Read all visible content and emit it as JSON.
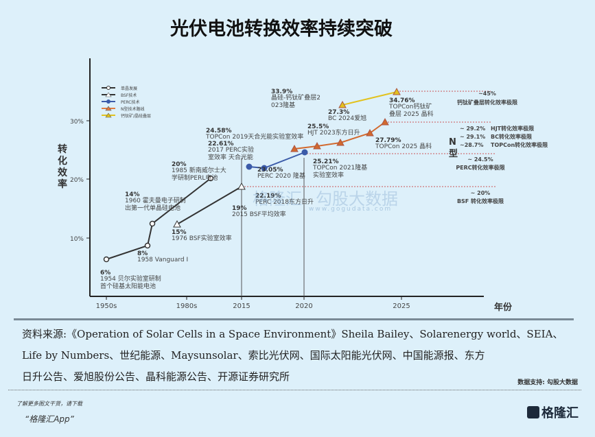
{
  "title": "光伏电池转换效率持续突破",
  "chart_data": {
    "type": "line",
    "ylabel": "转化效率",
    "xlabel": "年份",
    "y_ticks": [
      "10%",
      "20%",
      "30%"
    ],
    "x_ticks": [
      "1950s",
      "1980s",
      "2015",
      "2020",
      "2025"
    ],
    "legend": [
      "单晶发展",
      "BSF技术",
      "PERC技术",
      "N型技术路线",
      "钙钛矿/晶硅叠层"
    ],
    "legend_placement": "top-left",
    "series": [
      {
        "name": "单晶发展",
        "color": "#333333",
        "points": [
          {
            "value": "6%",
            "label": "1954 贝尔实验室研制首个硅基太阳能电池"
          },
          {
            "value": "8%",
            "label": "1958 Vanguard I"
          },
          {
            "value": "14%",
            "label": "1960 霍夫曼电子研制出第一代单晶硅电池"
          },
          {
            "value": "20%",
            "label": "1985 新南威尔士大学研制PERL电池"
          }
        ]
      },
      {
        "name": "BSF技术",
        "color": "#333333",
        "points": [
          {
            "value": "15%",
            "label": "1976 BSF实验室效率"
          },
          {
            "value": "19%",
            "label": "2015 BSF平均效率"
          }
        ]
      },
      {
        "name": "PERC技术",
        "color": "#3b5ba9",
        "points": [
          {
            "value": "22.61%",
            "label": "2017 PERC实验室效率 天合光能"
          },
          {
            "value": "22.19%",
            "label": "PERC 2018东方日升"
          },
          {
            "value": "23.05%",
            "label": "PERC 2020 隆基"
          }
        ]
      },
      {
        "name": "N型技术路线",
        "color": "#d2692e",
        "points": [
          {
            "value": "24.58%",
            "label": "TOPCon 2019天合光能实验室效率"
          },
          {
            "value": "25.21%",
            "label": "TOPCon 2021隆基实验室效率"
          },
          {
            "value": "25.5%",
            "label": "HJT 2023东方日升"
          },
          {
            "value": "27.3%",
            "label": "BC 2024爱旭"
          },
          {
            "value": "27.79%",
            "label": "TOPCon 2025 晶科"
          }
        ]
      },
      {
        "name": "钙钛矿/晶硅叠层",
        "color": "#e2c21e",
        "points": [
          {
            "value": "33.9%",
            "label": "晶硅-钙钛矿叠层2023隆基"
          },
          {
            "value": "34.76%",
            "label": "TOPCon钙钛矿叠层 2025 晶科"
          }
        ]
      }
    ],
    "limits": [
      {
        "value": "~45%",
        "label": "钙钛矿叠层转化效率极限"
      },
      {
        "value": "~ 29.2%",
        "label": "HJT转化效率极限"
      },
      {
        "value": "~ 29.1%",
        "label": "BC转化效率极限"
      },
      {
        "value": "~28.7%",
        "label": "TOPCon转化效率极限"
      },
      {
        "value": "~ 24.5%",
        "label": "PERC转化效率极限"
      },
      {
        "value": "~ 20%",
        "label": "BSF 转化效率极限"
      }
    ],
    "n_type_mark": [
      "N",
      "型"
    ]
  },
  "source": {
    "line1": "资料来源:《Operation of Solar Cells in a Space Environment》Sheila Bailey、Solarenergy world、SEIA、",
    "line2": "Life by Numbers、世纪能源、Maysunsolar、索比光伏网、国际太阳能光伏网、中国能源报、东方",
    "line3": "日升公告、爱旭股份公告、晶科能源公告、开源证券研究所"
  },
  "data_support": "数据支持: 勾股大数据",
  "footer": {
    "promo": "了解更多图文干货，请下载",
    "app": "“格隆汇App”",
    "logo": "格隆汇"
  },
  "watermark": [
    "格隆汇",
    "勾股大数据",
    "www.gogudata.com"
  ]
}
